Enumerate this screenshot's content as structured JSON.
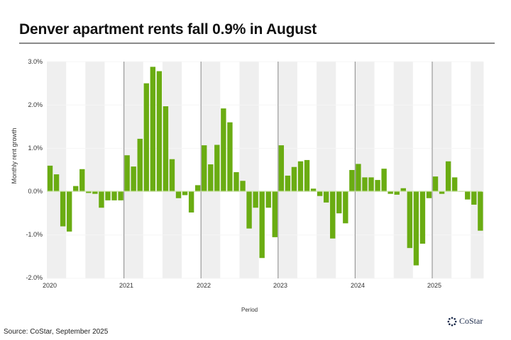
{
  "header": {
    "title": "Denver apartment rents fall 0.9% in August"
  },
  "footer": {
    "source": "Source: CoStar, September 2025",
    "logo_text": "CoStar",
    "logo_icon": "costar-logo-icon"
  },
  "colors": {
    "bar": "#6aac12",
    "band": "#efefef",
    "year_line": "#9a9a9a",
    "title_rule": "#8a8a8a"
  },
  "chart_data": {
    "type": "bar",
    "title": "Denver apartment rents fall 0.9% in August",
    "xlabel": "Period",
    "ylabel": "Monthly rent growth",
    "ylim": [
      -2.0,
      3.0
    ],
    "yticks": [
      "3.0%",
      "2.0%",
      "1.0%",
      "0.0%",
      "-1.0%",
      "-2.0%"
    ],
    "xticks": [
      "2020",
      "2021",
      "2022",
      "2023",
      "2024",
      "2025"
    ],
    "grid": true,
    "legend": null,
    "categories": [
      "2020-01",
      "2020-02",
      "2020-03",
      "2020-04",
      "2020-05",
      "2020-06",
      "2020-07",
      "2020-08",
      "2020-09",
      "2020-10",
      "2020-11",
      "2020-12",
      "2021-01",
      "2021-02",
      "2021-03",
      "2021-04",
      "2021-05",
      "2021-06",
      "2021-07",
      "2021-08",
      "2021-09",
      "2021-10",
      "2021-11",
      "2021-12",
      "2022-01",
      "2022-02",
      "2022-03",
      "2022-04",
      "2022-05",
      "2022-06",
      "2022-07",
      "2022-08",
      "2022-09",
      "2022-10",
      "2022-11",
      "2022-12",
      "2023-01",
      "2023-02",
      "2023-03",
      "2023-04",
      "2023-05",
      "2023-06",
      "2023-07",
      "2023-08",
      "2023-09",
      "2023-10",
      "2023-11",
      "2023-12",
      "2024-01",
      "2024-02",
      "2024-03",
      "2024-04",
      "2024-05",
      "2024-06",
      "2024-07",
      "2024-08",
      "2024-09",
      "2024-10",
      "2024-11",
      "2024-12",
      "2025-01",
      "2025-02",
      "2025-03",
      "2025-04",
      "2025-05",
      "2025-06",
      "2025-07",
      "2025-08"
    ],
    "series": [
      {
        "name": "Monthly rent growth (%)",
        "values": [
          0.6,
          0.4,
          -0.8,
          -0.92,
          0.13,
          0.52,
          -0.03,
          -0.05,
          -0.37,
          -0.2,
          -0.2,
          -0.2,
          0.84,
          0.58,
          1.22,
          2.5,
          2.88,
          2.78,
          1.97,
          0.75,
          -0.15,
          -0.08,
          -0.48,
          0.15,
          1.07,
          0.63,
          1.08,
          1.92,
          1.6,
          0.45,
          0.25,
          -0.85,
          -0.37,
          -1.53,
          -0.37,
          -1.05,
          1.07,
          0.37,
          0.57,
          0.7,
          0.73,
          0.07,
          -0.1,
          -0.25,
          -1.08,
          -0.5,
          -0.73,
          0.5,
          0.64,
          0.33,
          0.33,
          0.27,
          0.53,
          -0.05,
          -0.07,
          0.08,
          -1.3,
          -1.7,
          -1.2,
          -0.15,
          0.35,
          -0.05,
          0.7,
          0.33,
          0.01,
          -0.18,
          -0.3,
          -0.9
        ]
      }
    ]
  }
}
